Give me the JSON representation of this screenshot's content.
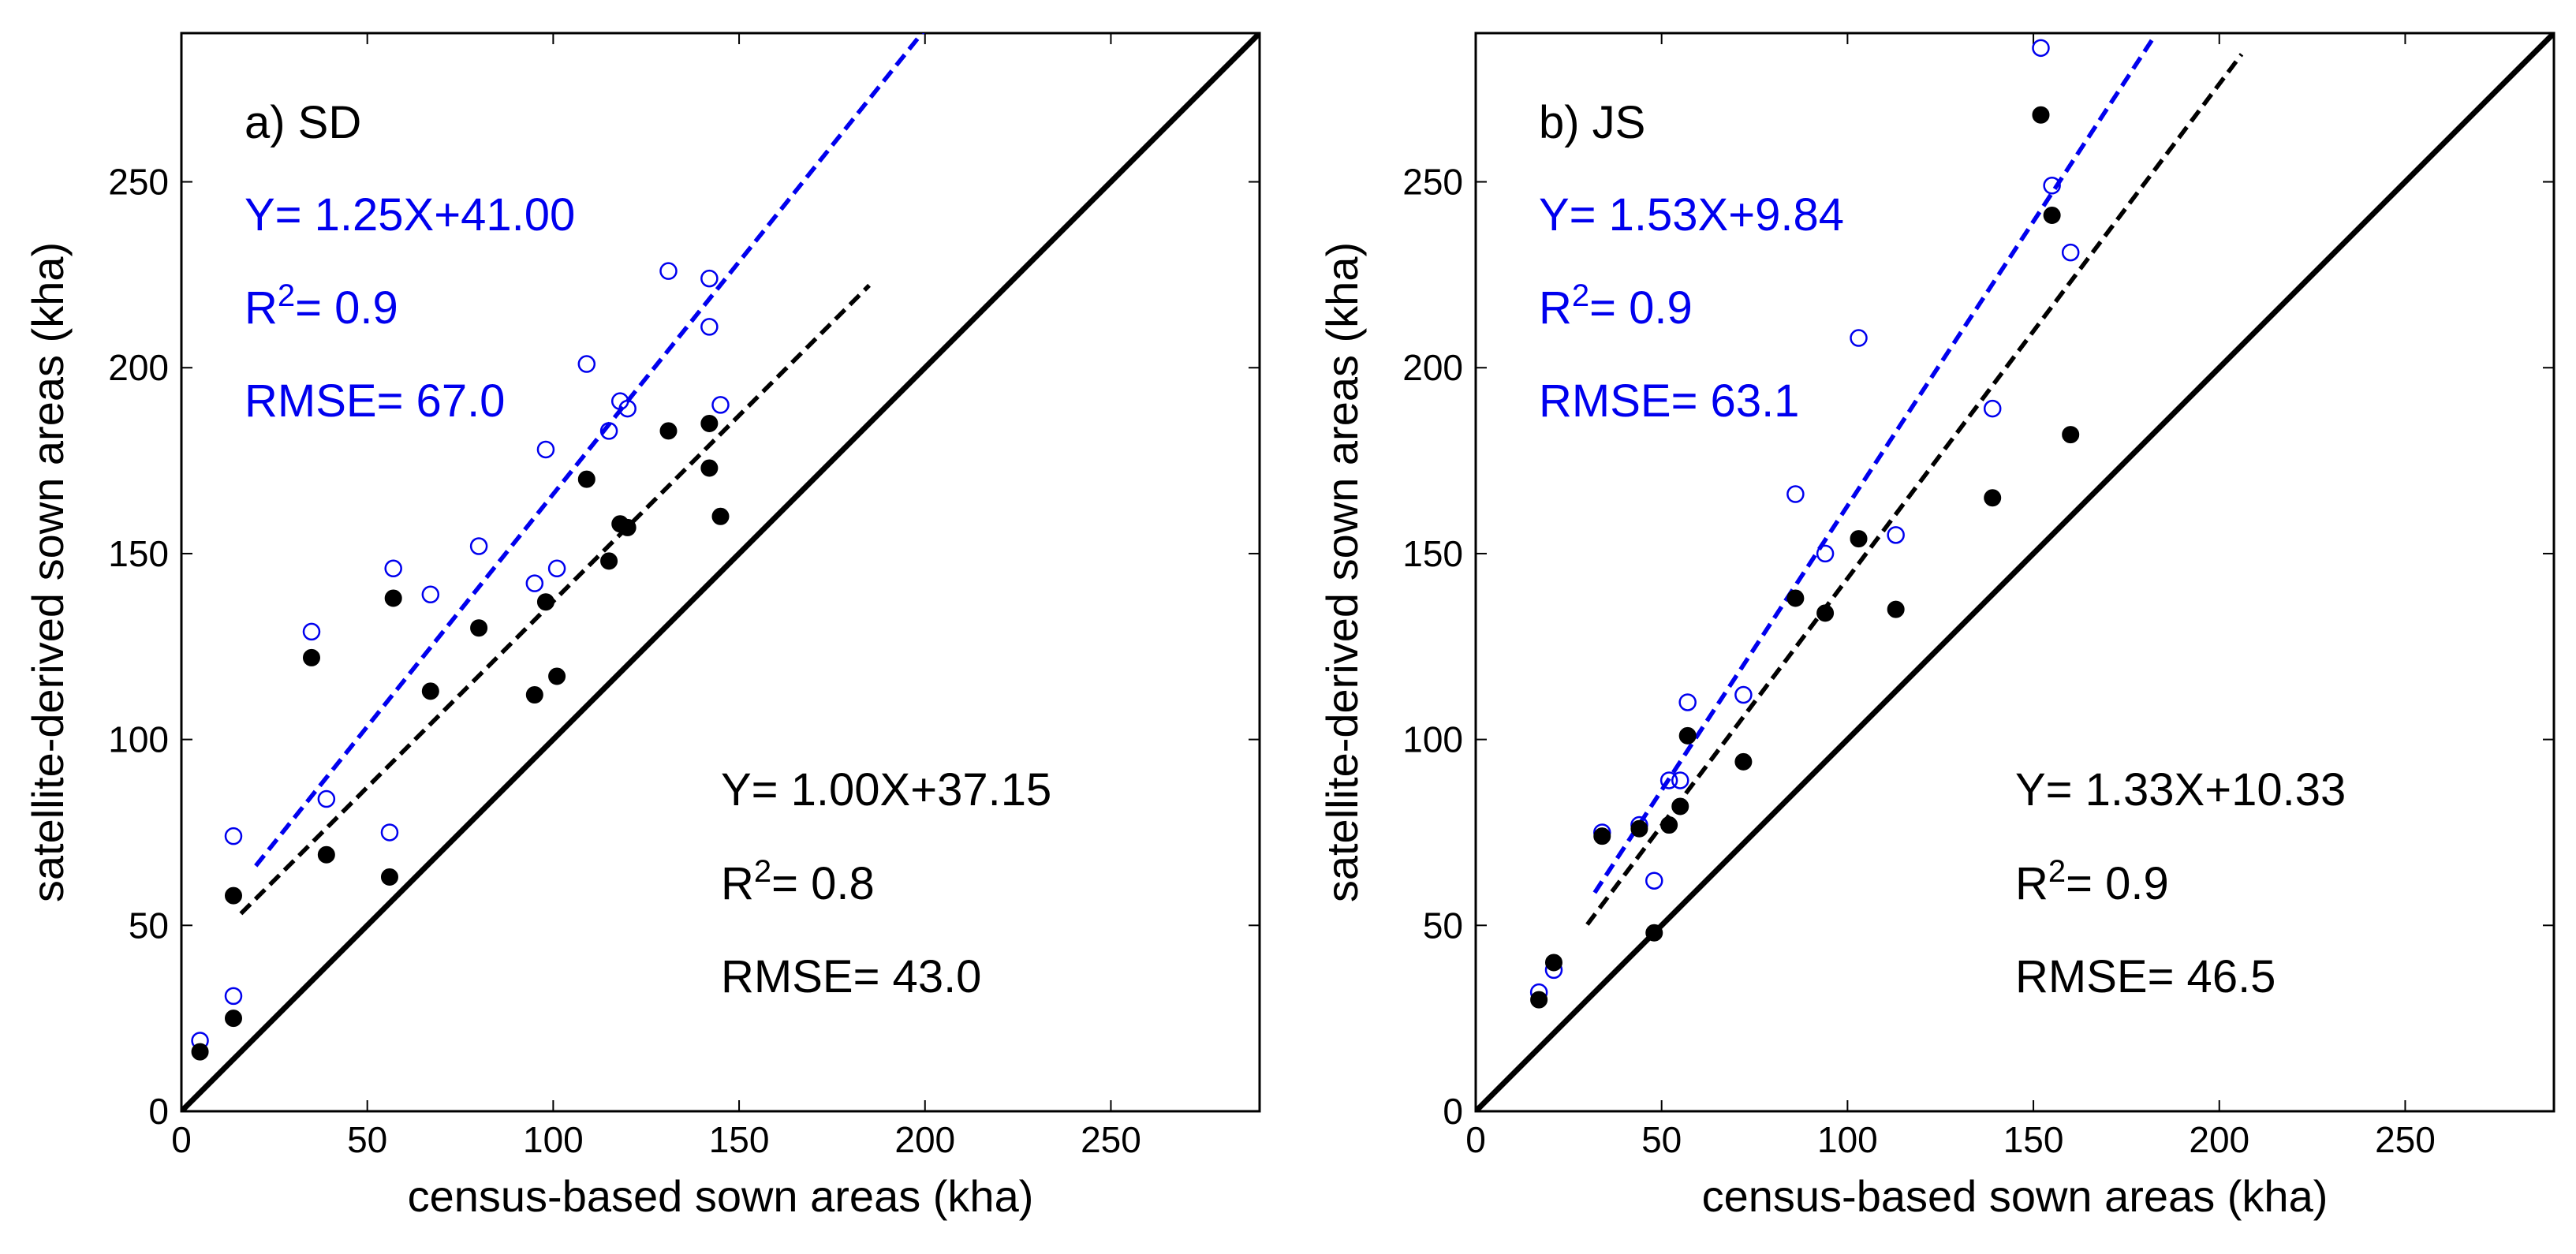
{
  "chart_data": [
    {
      "type": "scatter",
      "panel_label": "a) SD",
      "xlabel": "census-based sown areas (kha)",
      "ylabel": "satellite-derived sown areas (kha)",
      "xlim": [
        0,
        290
      ],
      "ylim": [
        0,
        290
      ],
      "xticks": [
        0,
        50,
        100,
        150,
        200,
        250
      ],
      "yticks": [
        0,
        50,
        100,
        150,
        200,
        250
      ],
      "identity_line": true,
      "colors": {
        "blue": "#0000ee",
        "black": "#000000"
      },
      "series": [
        {
          "name": "open-blue",
          "marker": "open-circle",
          "color": "#0000ee",
          "points": [
            [
              5,
              19
            ],
            [
              14,
              31
            ],
            [
              14,
              74
            ],
            [
              35,
              129
            ],
            [
              39,
              84
            ],
            [
              56,
              75
            ],
            [
              57,
              146
            ],
            [
              67,
              139
            ],
            [
              80,
              152
            ],
            [
              95,
              142
            ],
            [
              98,
              178
            ],
            [
              101,
              146
            ],
            [
              109,
              201
            ],
            [
              115,
              183
            ],
            [
              118,
              191
            ],
            [
              120,
              189
            ],
            [
              131,
              226
            ],
            [
              142,
              224
            ],
            [
              142,
              211
            ],
            [
              145,
              190
            ]
          ]
        },
        {
          "name": "filled-black",
          "marker": "filled-circle",
          "color": "#000000",
          "points": [
            [
              5,
              16
            ],
            [
              14,
              25
            ],
            [
              14,
              58
            ],
            [
              35,
              122
            ],
            [
              39,
              69
            ],
            [
              56,
              63
            ],
            [
              57,
              138
            ],
            [
              67,
              113
            ],
            [
              80,
              130
            ],
            [
              95,
              112
            ],
            [
              98,
              137
            ],
            [
              101,
              117
            ],
            [
              109,
              170
            ],
            [
              115,
              148
            ],
            [
              118,
              158
            ],
            [
              120,
              157
            ],
            [
              131,
              183
            ],
            [
              142,
              185
            ],
            [
              142,
              173
            ],
            [
              145,
              160
            ]
          ]
        }
      ],
      "fits": [
        {
          "series": "open-blue",
          "slope": 1.25,
          "intercept": 41.0,
          "x_range": [
            20,
            210
          ],
          "color": "#0000ee"
        },
        {
          "series": "filled-black",
          "slope": 1.0,
          "intercept": 37.15,
          "x_range": [
            16,
            185
          ],
          "color": "#000000"
        }
      ],
      "annotations": {
        "blue_equation": "Y= 1.25X+41.00",
        "blue_r2_value": "= 0.9",
        "blue_rmse": "RMSE= 67.0",
        "black_equation": "Y= 1.00X+37.15",
        "black_r2_value": "= 0.8",
        "black_rmse": "RMSE= 43.0"
      }
    },
    {
      "type": "scatter",
      "panel_label": "b) JS",
      "xlabel": "census-based sown areas (kha)",
      "ylabel": "satellite-derived sown areas (kha)",
      "xlim": [
        0,
        290
      ],
      "ylim": [
        0,
        290
      ],
      "xticks": [
        0,
        50,
        100,
        150,
        200,
        250
      ],
      "yticks": [
        0,
        50,
        100,
        150,
        200,
        250
      ],
      "identity_line": true,
      "colors": {
        "blue": "#0000ee",
        "black": "#000000"
      },
      "series": [
        {
          "name": "open-blue",
          "marker": "open-circle",
          "color": "#0000ee",
          "points": [
            [
              17,
              32
            ],
            [
              21,
              38
            ],
            [
              34,
              75
            ],
            [
              44,
              77
            ],
            [
              48,
              62
            ],
            [
              52,
              89
            ],
            [
              55,
              89
            ],
            [
              57,
              110
            ],
            [
              72,
              112
            ],
            [
              86,
              166
            ],
            [
              94,
              150
            ],
            [
              103,
              208
            ],
            [
              113,
              155
            ],
            [
              139,
              189
            ],
            [
              152,
              286
            ],
            [
              155,
              249
            ],
            [
              160,
              231
            ]
          ]
        },
        {
          "name": "filled-black",
          "marker": "filled-circle",
          "color": "#000000",
          "points": [
            [
              17,
              30
            ],
            [
              21,
              40
            ],
            [
              34,
              74
            ],
            [
              44,
              76
            ],
            [
              48,
              48
            ],
            [
              52,
              77
            ],
            [
              55,
              82
            ],
            [
              57,
              101
            ],
            [
              72,
              94
            ],
            [
              86,
              138
            ],
            [
              94,
              134
            ],
            [
              103,
              154
            ],
            [
              113,
              135
            ],
            [
              139,
              165
            ],
            [
              152,
              268
            ],
            [
              155,
              241
            ],
            [
              160,
              182
            ]
          ]
        }
      ],
      "fits": [
        {
          "series": "open-blue",
          "slope": 1.53,
          "intercept": 9.84,
          "x_range": [
            32,
            182
          ],
          "color": "#0000ee"
        },
        {
          "series": "filled-black",
          "slope": 1.33,
          "intercept": 10.33,
          "x_range": [
            30,
            206
          ],
          "color": "#000000"
        }
      ],
      "annotations": {
        "blue_equation": "Y= 1.53X+9.84",
        "blue_r2_value": "= 0.9",
        "blue_rmse": "RMSE= 63.1",
        "black_equation": "Y= 1.33X+10.33",
        "black_r2_value": "= 0.9",
        "black_rmse": "RMSE= 46.5"
      }
    }
  ]
}
